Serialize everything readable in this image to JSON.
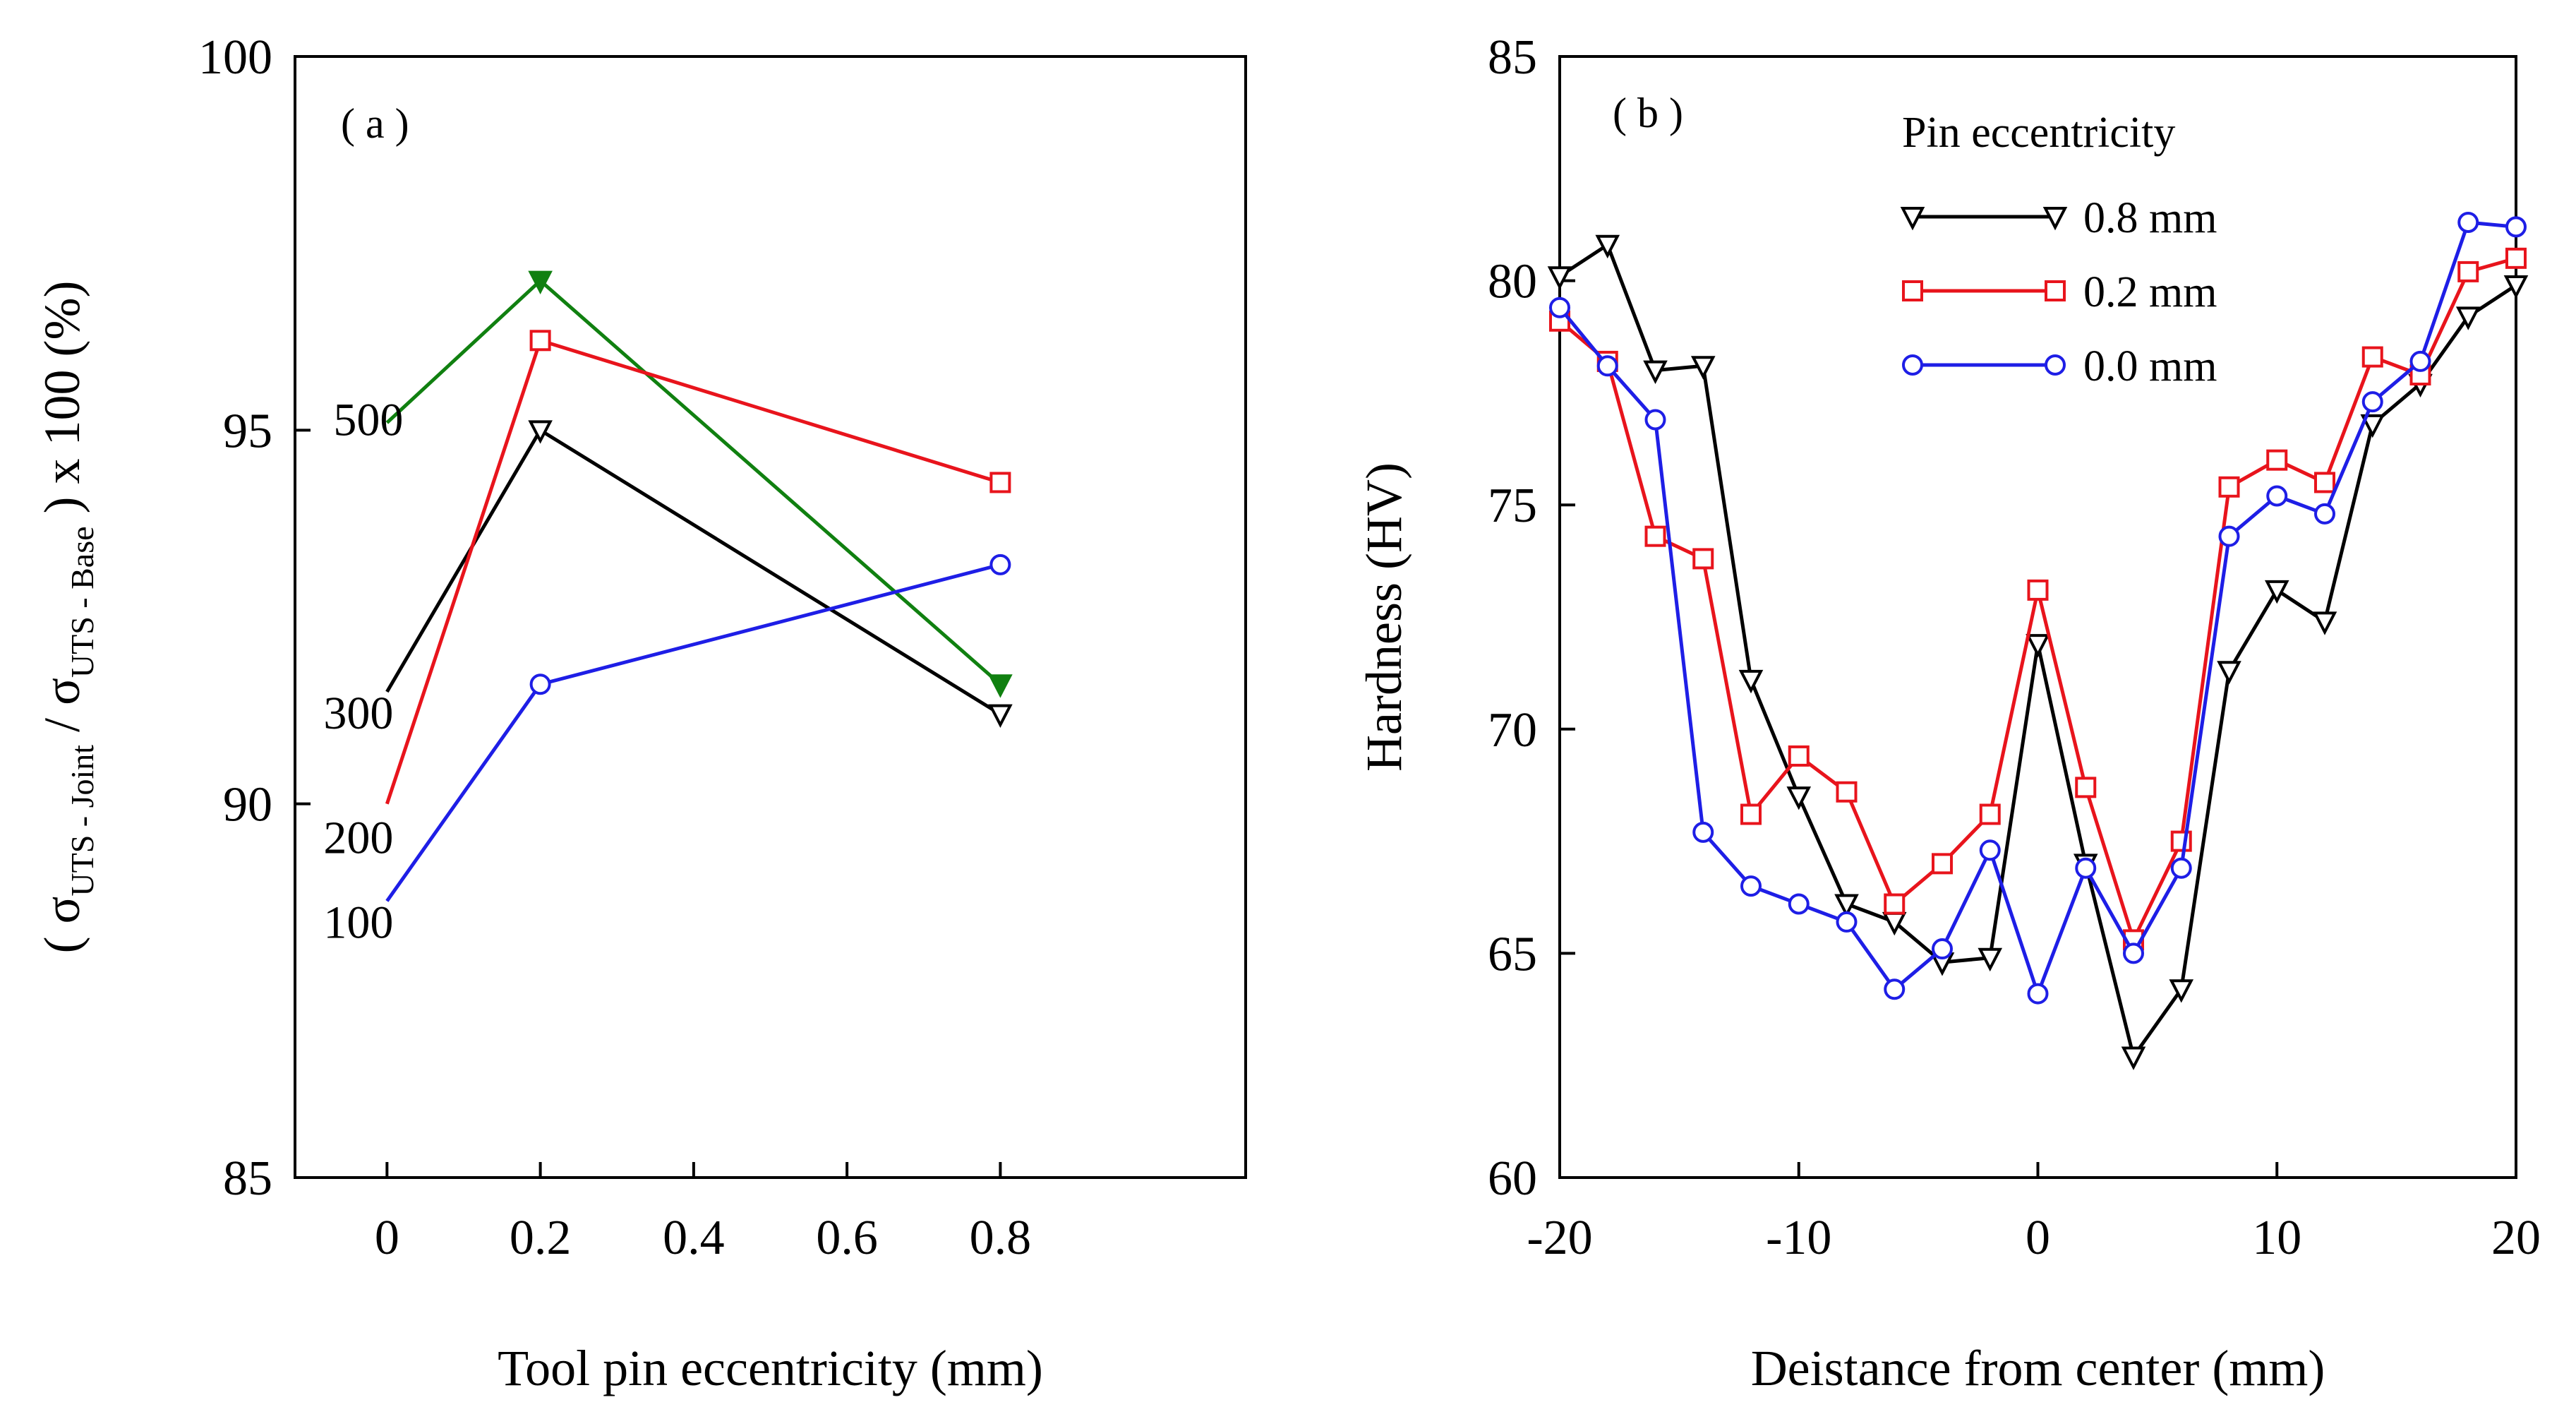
{
  "chart_data": [
    {
      "type": "line",
      "panel_label": "( a )",
      "xlabel": "Tool pin eccentricity (mm)",
      "ylabel": {
        "open": "( σ",
        "sub1": "UTS - Joint",
        "mid": " / σ",
        "sub2": "UTS - Base",
        "close": " ) x 100 (%)"
      },
      "xlim": [
        -0.12,
        1.12
      ],
      "ylim": [
        85,
        100
      ],
      "x_ticks": [
        {
          "value": 0,
          "label": "0"
        },
        {
          "value": 0.2,
          "label": "0.2"
        },
        {
          "value": 0.4,
          "label": "0.4"
        },
        {
          "value": 0.6,
          "label": "0.6"
        },
        {
          "value": 0.8,
          "label": "0.8"
        }
      ],
      "y_ticks": [
        {
          "value": 85,
          "label": "85"
        },
        {
          "value": 90,
          "label": "90"
        },
        {
          "value": 95,
          "label": "95"
        },
        {
          "value": 100,
          "label": "100"
        }
      ],
      "series": [
        {
          "name": "500",
          "color": "#108010",
          "marker": "filled-triangle-down",
          "x": [
            0,
            0.2,
            0.8
          ],
          "y": [
            95.1,
            97.0,
            91.6
          ],
          "markers_from": 1
        },
        {
          "name": "300",
          "color": "#000000",
          "marker": "open-triangle-down",
          "x": [
            0,
            0.2,
            0.8
          ],
          "y": [
            91.5,
            95.0,
            91.2
          ],
          "markers_from": 1
        },
        {
          "name": "200",
          "color": "#e8141c",
          "marker": "open-square",
          "x": [
            0,
            0.2,
            0.8
          ],
          "y": [
            90.0,
            96.2,
            94.3
          ],
          "markers_from": 1
        },
        {
          "name": "100",
          "color": "#1e1ee6",
          "marker": "open-circle",
          "x": [
            0,
            0.2,
            0.8
          ],
          "y": [
            88.7,
            91.6,
            93.2
          ],
          "markers_from": 1
        }
      ],
      "series_labels": [
        {
          "text": "500",
          "series": "500"
        },
        {
          "text": "300",
          "series": "300"
        },
        {
          "text": "200",
          "series": "200"
        },
        {
          "text": "100",
          "series": "100"
        }
      ]
    },
    {
      "type": "line",
      "panel_label": "( b )",
      "xlabel": "Deistance from center (mm)",
      "ylabel": "Hardness (HV)",
      "xlim": [
        -20,
        20
      ],
      "ylim": [
        60,
        85
      ],
      "x_ticks": [
        {
          "value": -20,
          "label": "-20"
        },
        {
          "value": -10,
          "label": "-10"
        },
        {
          "value": 0,
          "label": "0"
        },
        {
          "value": 10,
          "label": "10"
        },
        {
          "value": 20,
          "label": "20"
        }
      ],
      "y_ticks": [
        {
          "value": 60,
          "label": "60"
        },
        {
          "value": 65,
          "label": "65"
        },
        {
          "value": 70,
          "label": "70"
        },
        {
          "value": 75,
          "label": "75"
        },
        {
          "value": 80,
          "label": "80"
        },
        {
          "value": 85,
          "label": "85"
        }
      ],
      "legend_title": "Pin eccentricity",
      "legend_position": "top-center",
      "series": [
        {
          "name": "0.8 mm",
          "color": "#000000",
          "marker": "open-triangle-down",
          "x": [
            -20,
            -18,
            -16,
            -14,
            -12,
            -10,
            -8,
            -6,
            -4,
            -2,
            0,
            2,
            4,
            6,
            8,
            10,
            12,
            14,
            16,
            18,
            20
          ],
          "y": [
            80.1,
            80.8,
            78.0,
            78.1,
            71.1,
            68.5,
            66.1,
            65.7,
            64.8,
            64.9,
            71.9,
            67.0,
            62.7,
            64.2,
            71.3,
            73.1,
            72.4,
            76.8,
            77.7,
            79.2,
            79.9
          ]
        },
        {
          "name": "0.2 mm",
          "color": "#e8141c",
          "marker": "open-square",
          "x": [
            -20,
            -18,
            -16,
            -14,
            -12,
            -10,
            -8,
            -6,
            -4,
            -2,
            0,
            2,
            4,
            6,
            8,
            10,
            12,
            14,
            16,
            18,
            20
          ],
          "y": [
            79.1,
            78.2,
            74.3,
            73.8,
            68.1,
            69.4,
            68.6,
            66.1,
            67.0,
            68.1,
            73.1,
            68.7,
            65.3,
            67.5,
            75.4,
            76.0,
            75.5,
            78.3,
            77.9,
            80.2,
            80.5
          ]
        },
        {
          "name": "0.0 mm",
          "color": "#1e1ee6",
          "marker": "open-circle",
          "x": [
            -20,
            -18,
            -16,
            -14,
            -12,
            -10,
            -8,
            -6,
            -4,
            -2,
            0,
            2,
            4,
            6,
            8,
            10,
            12,
            14,
            16,
            18,
            20
          ],
          "y": [
            79.4,
            78.1,
            76.9,
            67.7,
            66.5,
            66.1,
            65.7,
            64.2,
            65.1,
            67.3,
            64.1,
            66.9,
            65.0,
            66.9,
            74.3,
            75.2,
            74.8,
            77.3,
            78.2,
            81.3,
            81.2
          ]
        }
      ]
    }
  ]
}
